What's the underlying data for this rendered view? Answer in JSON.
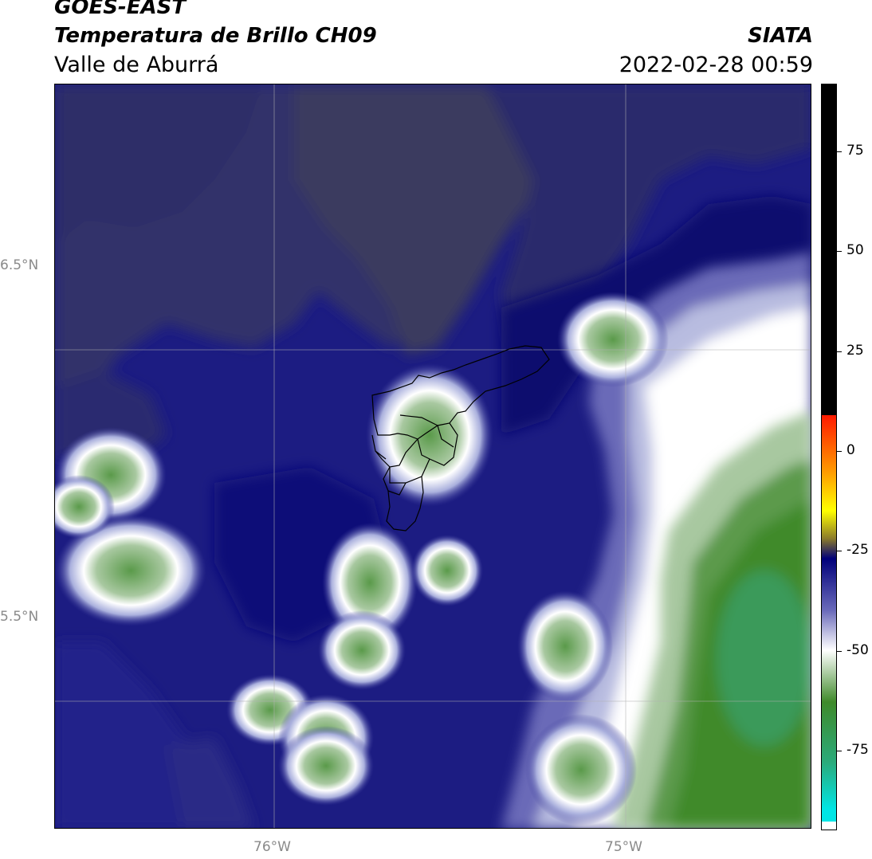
{
  "header": {
    "satellite": "GOES-EAST",
    "product": "Temperatura de Brillo CH09",
    "region": "Valle de Aburrá",
    "agency": "SIATA",
    "datetime": "2022-02-28 00:59"
  },
  "map": {
    "lat_labels": [
      "6.5°N",
      "5.5°N"
    ],
    "lon_labels": [
      "76°W",
      "75°W"
    ]
  },
  "colorbar": {
    "ticks": [
      {
        "value": 75,
        "label": "75"
      },
      {
        "value": 50,
        "label": "50"
      },
      {
        "value": 25,
        "label": "25"
      },
      {
        "value": 0,
        "label": "0"
      },
      {
        "value": -25,
        "label": "-25"
      },
      {
        "value": -50,
        "label": "-50"
      },
      {
        "value": -75,
        "label": "-75"
      }
    ],
    "vmin": -95,
    "vmax": 92,
    "colors": {
      "black": "#000000",
      "red": "#ff1a00",
      "orange": "#ff9900",
      "yellow": "#ffff00",
      "olive": "#8a7a2a",
      "navy": "#00007a",
      "periwinkle": "#6a6aba",
      "white": "#ffffff",
      "green": "#3f8a2a",
      "teal": "#2aaa7a",
      "cyan": "#00e5e5"
    }
  }
}
